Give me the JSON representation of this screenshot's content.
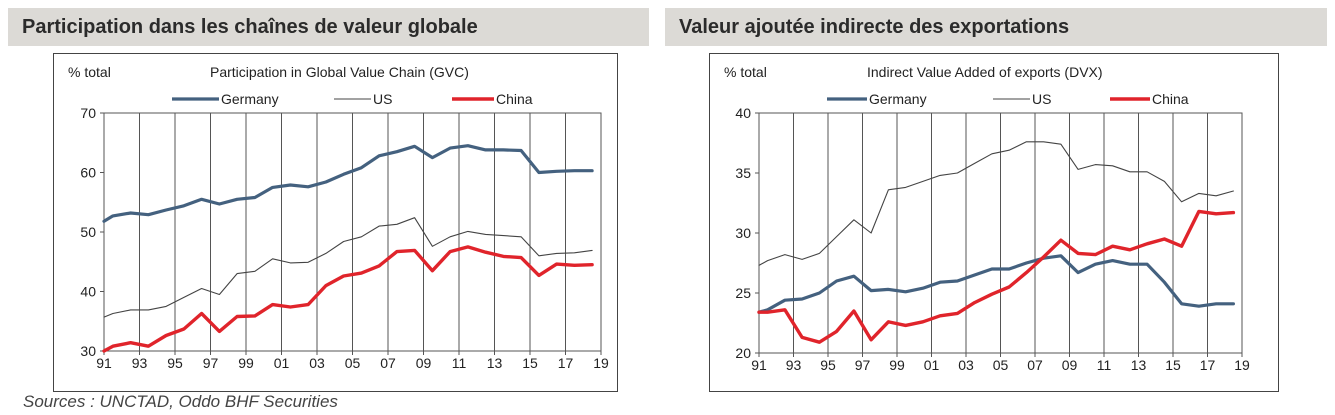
{
  "left_section_title": "Participation dans les chaînes de valeur globale",
  "right_section_title": "Valeur ajoutée indirecte des exportations",
  "sources": "Sources : UNCTAD, Oddo BHF Securities",
  "colors": {
    "Germany": "#44617f",
    "US": "#444444",
    "China": "#e0242b"
  },
  "chart_data": [
    {
      "type": "line",
      "title": "Participation in Global Value Chain (GVC)",
      "ylabel": "% total",
      "ylim": [
        30,
        70
      ],
      "yticks": [
        "30",
        "40",
        "50",
        "60",
        "70"
      ],
      "xticks": [
        "91",
        "93",
        "95",
        "97",
        "99",
        "01",
        "03",
        "05",
        "07",
        "09",
        "11",
        "13",
        "15",
        "17",
        "19"
      ],
      "xlim": [
        1991,
        2019
      ],
      "grid": "vertical",
      "legend": "top",
      "x": [
        1991,
        1991.5,
        1992.5,
        1993.5,
        1994.5,
        1995.5,
        1996.5,
        1997.5,
        1998.5,
        1999.5,
        2000.5,
        2001.5,
        2002.5,
        2003.5,
        2004.5,
        2005.5,
        2006.5,
        2007.5,
        2008.5,
        2009.5,
        2010.5,
        2011.5,
        2012.5,
        2013.5,
        2014.5,
        2015.5,
        2016.5,
        2017.5,
        2018.5
      ],
      "series": [
        {
          "name": "Germany",
          "values": [
            51.8,
            52.7,
            53.2,
            52.9,
            53.7,
            54.4,
            55.5,
            54.7,
            55.5,
            55.8,
            57.5,
            57.9,
            57.6,
            58.4,
            59.7,
            60.8,
            62.8,
            63.5,
            64.4,
            62.5,
            64.1,
            64.5,
            63.8,
            63.8,
            63.7,
            60.0,
            60.2,
            60.3,
            60.3
          ]
        },
        {
          "name": "US",
          "values": [
            35.7,
            36.3,
            36.9,
            36.9,
            37.5,
            39.0,
            40.5,
            39.5,
            43.0,
            43.4,
            45.5,
            44.8,
            44.9,
            46.4,
            48.4,
            49.2,
            51.0,
            51.3,
            52.4,
            47.6,
            49.2,
            50.1,
            49.6,
            49.4,
            49.2,
            46.0,
            46.4,
            46.5,
            46.9
          ]
        },
        {
          "name": "China",
          "values": [
            30.0,
            30.8,
            31.4,
            30.8,
            32.6,
            33.7,
            36.3,
            33.3,
            35.8,
            35.9,
            37.8,
            37.4,
            37.8,
            41.0,
            42.6,
            43.1,
            44.3,
            46.7,
            46.9,
            43.5,
            46.7,
            47.5,
            46.6,
            45.9,
            45.7,
            42.7,
            44.6,
            44.4,
            44.5
          ]
        }
      ]
    },
    {
      "type": "line",
      "title": "Indirect Value Added  of exports (DVX)",
      "ylabel": "% total",
      "ylim": [
        20,
        40
      ],
      "yticks": [
        "20",
        "25",
        "30",
        "35",
        "40"
      ],
      "xticks": [
        "91",
        "93",
        "95",
        "97",
        "99",
        "01",
        "03",
        "05",
        "07",
        "09",
        "11",
        "13",
        "15",
        "17",
        "19"
      ],
      "xlim": [
        1991,
        2019
      ],
      "grid": "vertical",
      "legend": "top",
      "x": [
        1991,
        1991.5,
        1992.5,
        1993.5,
        1994.5,
        1995.5,
        1996.5,
        1997.5,
        1998.5,
        1999.5,
        2000.5,
        2001.5,
        2002.5,
        2003.5,
        2004.5,
        2005.5,
        2006.5,
        2007.5,
        2008.5,
        2009.5,
        2010.5,
        2011.5,
        2012.5,
        2013.5,
        2014.5,
        2015.5,
        2016.5,
        2017.5,
        2018.5
      ],
      "series": [
        {
          "name": "Germany",
          "values": [
            23.4,
            23.6,
            24.4,
            24.5,
            25.0,
            26.0,
            26.4,
            25.2,
            25.3,
            25.1,
            25.4,
            25.9,
            26.0,
            26.5,
            27.0,
            27.0,
            27.5,
            27.9,
            28.1,
            26.7,
            27.4,
            27.7,
            27.4,
            27.4,
            25.9,
            24.1,
            23.9,
            24.1,
            24.1
          ]
        },
        {
          "name": "US",
          "values": [
            27.3,
            27.7,
            28.2,
            27.8,
            28.3,
            29.7,
            31.1,
            30.0,
            33.6,
            33.8,
            34.3,
            34.8,
            35.0,
            35.8,
            36.6,
            36.9,
            37.6,
            37.6,
            37.4,
            35.3,
            35.7,
            35.6,
            35.1,
            35.1,
            34.3,
            32.6,
            33.3,
            33.1,
            33.5
          ]
        },
        {
          "name": "China",
          "values": [
            23.4,
            23.4,
            23.6,
            21.3,
            20.9,
            21.8,
            23.5,
            21.1,
            22.6,
            22.3,
            22.6,
            23.1,
            23.3,
            24.2,
            24.9,
            25.5,
            26.7,
            28.0,
            29.4,
            28.3,
            28.2,
            28.9,
            28.6,
            29.1,
            29.5,
            28.9,
            31.8,
            31.6,
            31.7
          ]
        }
      ]
    }
  ]
}
